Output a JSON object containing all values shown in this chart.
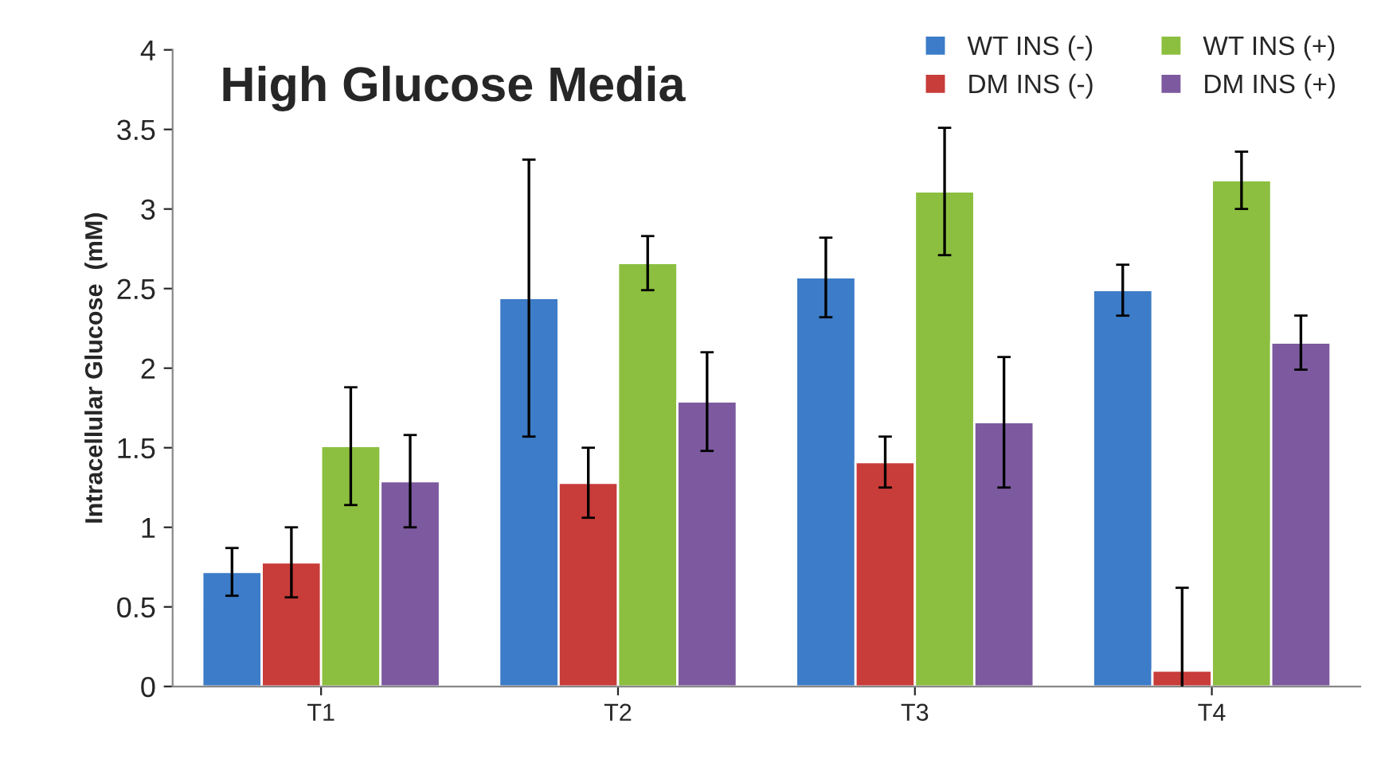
{
  "chart_data": {
    "type": "bar",
    "title": "High Glucose Media",
    "ylabel": "Intracellular Glucose  (mM)",
    "categories": [
      "T1",
      "T2",
      "T3",
      "T4"
    ],
    "series": [
      {
        "name": "WT INS (-)",
        "color": "#3c7cc8",
        "values": [
          0.72,
          2.44,
          2.57,
          2.49
        ],
        "errors": [
          0.15,
          0.87,
          0.25,
          0.16
        ]
      },
      {
        "name": "DM INS (-)",
        "color": "#c83c3a",
        "values": [
          0.78,
          1.28,
          1.41,
          0.1
        ],
        "errors": [
          0.22,
          0.22,
          0.16,
          0.52
        ]
      },
      {
        "name": "WT INS (+)",
        "color": "#8cbf3f",
        "values": [
          1.51,
          2.66,
          3.11,
          3.18
        ],
        "errors": [
          0.37,
          0.17,
          0.4,
          0.18
        ]
      },
      {
        "name": "DM INS (+)",
        "color": "#7d5a9f",
        "values": [
          1.29,
          1.79,
          1.66,
          2.16
        ],
        "errors": [
          0.29,
          0.31,
          0.41,
          0.17
        ]
      }
    ],
    "ylim": [
      0,
      4
    ],
    "yticks": [
      0,
      0.5,
      1,
      1.5,
      2,
      2.5,
      3,
      3.5,
      4
    ],
    "grid": false,
    "legend": "top right"
  }
}
